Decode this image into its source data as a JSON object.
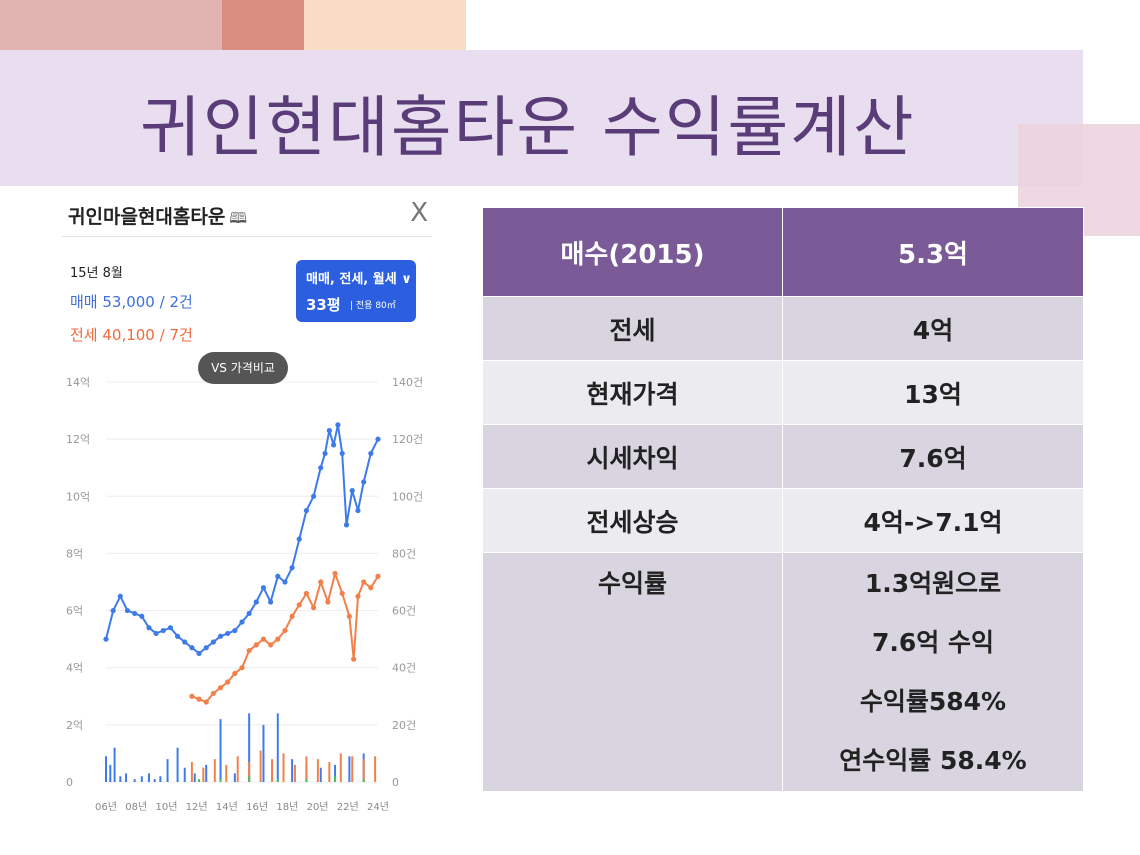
{
  "slide": {
    "title": "귀인현대홈타운 수익률계산"
  },
  "panel": {
    "title": "귀인마을현대홈타운",
    "map_icon": "map-book-icon",
    "close_label": "X",
    "date": "15년 8월",
    "sale_text": "매매 53,000 / 2건",
    "jeonse_text": "전세 40,100 / 7건",
    "filter_label": "매매, 전세, 월세 ∨",
    "filter_size": "33평",
    "filter_area": "| 전용 80㎡",
    "vs_label": "VS 가격비교"
  },
  "chart_data": {
    "type": "line",
    "y_left_ticks": [
      "0",
      "2억",
      "4억",
      "6억",
      "8억",
      "10억",
      "12억",
      "14억"
    ],
    "y_right_ticks": [
      "0",
      "20건",
      "40건",
      "60건",
      "80건",
      "100건",
      "120건",
      "140건"
    ],
    "x_ticks": [
      "06년",
      "08년",
      "10년",
      "12년",
      "14년",
      "16년",
      "18년",
      "20년",
      "22년",
      "24년"
    ],
    "ylim_left": [
      0,
      14
    ],
    "ylim_right": [
      0,
      140
    ],
    "xlim": [
      2006,
      2025
    ],
    "series": [
      {
        "name": "매매",
        "color": "#3f7be8",
        "x": [
          2006.0,
          2006.5,
          2007.0,
          2007.5,
          2008.0,
          2008.5,
          2009.0,
          2009.5,
          2010.0,
          2010.5,
          2011.0,
          2011.5,
          2012.0,
          2012.5,
          2013.0,
          2013.5,
          2014.0,
          2014.5,
          2015.0,
          2015.5,
          2016.0,
          2016.5,
          2017.0,
          2017.5,
          2018.0,
          2018.5,
          2019.0,
          2019.5,
          2020.0,
          2020.5,
          2021.0,
          2021.3,
          2021.6,
          2021.9,
          2022.2,
          2022.5,
          2022.8,
          2023.2,
          2023.6,
          2024.0,
          2024.5,
          2025.0
        ],
        "y": [
          5.0,
          6.0,
          6.5,
          6.0,
          5.9,
          5.8,
          5.4,
          5.2,
          5.3,
          5.4,
          5.1,
          4.9,
          4.7,
          4.5,
          4.7,
          4.9,
          5.1,
          5.2,
          5.3,
          5.6,
          5.9,
          6.3,
          6.8,
          6.3,
          7.2,
          7.0,
          7.5,
          8.5,
          9.5,
          10.0,
          11.0,
          11.5,
          12.3,
          11.8,
          12.5,
          11.5,
          9.0,
          10.2,
          9.5,
          10.5,
          11.5,
          12.0
        ]
      },
      {
        "name": "전세",
        "color": "#f2804a",
        "x": [
          2012.0,
          2012.5,
          2013.0,
          2013.5,
          2014.0,
          2014.5,
          2015.0,
          2015.5,
          2016.0,
          2016.5,
          2017.0,
          2017.5,
          2018.0,
          2018.5,
          2019.0,
          2019.5,
          2020.0,
          2020.5,
          2021.0,
          2021.5,
          2022.0,
          2022.5,
          2023.0,
          2023.3,
          2023.6,
          2024.0,
          2024.5,
          2025.0
        ],
        "y": [
          3.0,
          2.9,
          2.8,
          3.1,
          3.3,
          3.5,
          3.8,
          4.0,
          4.6,
          4.8,
          5.0,
          4.8,
          5.0,
          5.3,
          5.8,
          6.2,
          6.6,
          6.1,
          7.0,
          6.3,
          7.3,
          6.6,
          5.8,
          4.3,
          6.5,
          7.0,
          6.8,
          7.2
        ]
      }
    ],
    "volume": [
      {
        "name": "매매 거래량",
        "color": "#3f7be8",
        "x": [
          2006.0,
          2006.3,
          2006.6,
          2007.0,
          2007.4,
          2008.0,
          2008.5,
          2009.0,
          2009.4,
          2009.8,
          2010.3,
          2011.0,
          2011.5,
          2012.2,
          2013.0,
          2014.0,
          2015.0,
          2016.0,
          2017.0,
          2018.0,
          2019.0,
          2020.0,
          2021.0,
          2022.0,
          2023.0,
          2024.0
        ],
        "values": [
          9,
          6,
          12,
          2,
          3,
          1,
          2,
          3,
          1,
          2,
          8,
          12,
          5,
          3,
          6,
          22,
          3,
          24,
          20,
          24,
          8,
          6,
          5,
          6,
          9,
          10
        ]
      },
      {
        "name": "전세 거래량",
        "color": "#f2804a",
        "x": [
          2012.0,
          2012.8,
          2013.6,
          2014.4,
          2015.2,
          2016.0,
          2016.8,
          2017.6,
          2018.4,
          2019.2,
          2020.0,
          2020.8,
          2021.6,
          2022.4,
          2023.2,
          2024.0,
          2024.8
        ],
        "values": [
          7,
          5,
          8,
          6,
          9,
          7,
          11,
          8,
          10,
          6,
          9,
          8,
          7,
          10,
          9,
          8,
          9
        ]
      },
      {
        "name": "월세 거래량",
        "color": "#4bbf56",
        "x": [
          2012.5,
          2014.0,
          2016.0,
          2018.0,
          2020.0,
          2022.0,
          2024.0
        ],
        "values": [
          1,
          1,
          2,
          1,
          1,
          2,
          1
        ]
      }
    ]
  },
  "table": {
    "header": [
      "매수(2015)",
      "5.3억"
    ],
    "rows": [
      {
        "label": "전세",
        "value": "4억"
      },
      {
        "label": "현재가격",
        "value": "13억"
      },
      {
        "label": "시세차익",
        "value": "7.6억"
      },
      {
        "label": "전세상승",
        "value": "4억->7.1억"
      }
    ],
    "return_label": "수익률",
    "return_lines": [
      "1.3억원으로",
      "7.6억 수익",
      "수익률584%",
      "연수익률 58.4%"
    ]
  }
}
